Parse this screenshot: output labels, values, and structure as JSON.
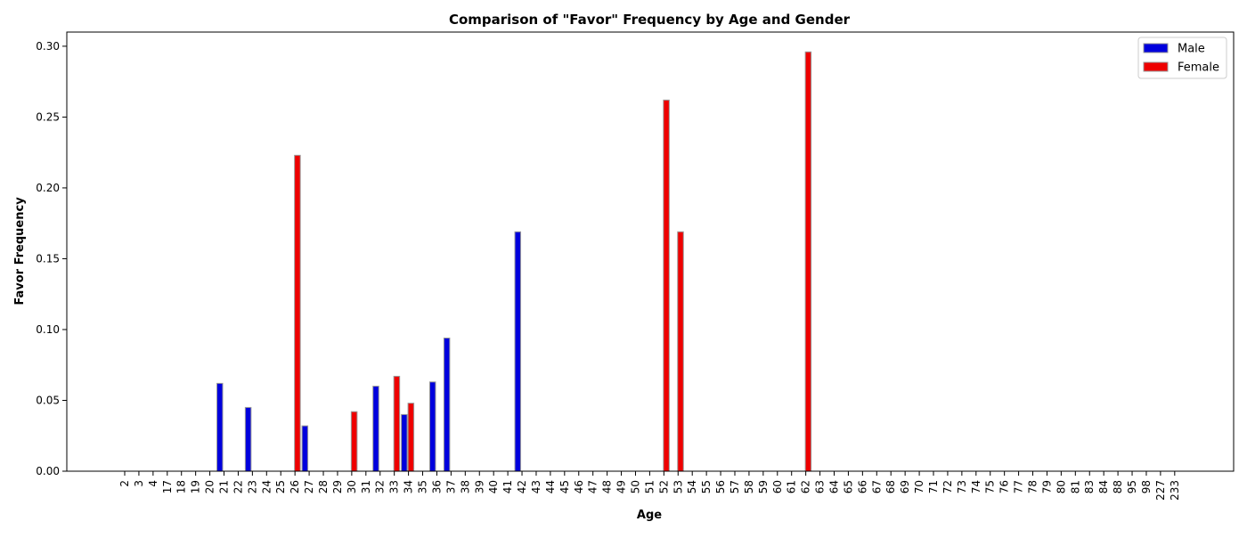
{
  "chart_data": {
    "type": "bar",
    "title": "Comparison of \"Favor\" Frequency by Age and Gender",
    "xlabel": "Age",
    "ylabel": "Favor Frequency",
    "ylim": [
      0,
      0.31
    ],
    "yticks": [
      "0.00",
      "0.05",
      "0.10",
      "0.15",
      "0.20",
      "0.25",
      "0.30"
    ],
    "legend_position": "top-right",
    "grid": false,
    "categories": [
      "2",
      "3",
      "4",
      "17",
      "18",
      "19",
      "20",
      "21",
      "22",
      "23",
      "24",
      "25",
      "26",
      "27",
      "28",
      "29",
      "30",
      "31",
      "32",
      "33",
      "34",
      "35",
      "36",
      "37",
      "38",
      "39",
      "40",
      "41",
      "42",
      "43",
      "44",
      "45",
      "46",
      "47",
      "48",
      "49",
      "50",
      "51",
      "52",
      "53",
      "54",
      "55",
      "56",
      "57",
      "58",
      "59",
      "60",
      "61",
      "62",
      "63",
      "64",
      "65",
      "66",
      "67",
      "68",
      "69",
      "70",
      "71",
      "72",
      "73",
      "74",
      "75",
      "76",
      "77",
      "78",
      "79",
      "80",
      "81",
      "83",
      "84",
      "88",
      "95",
      "98",
      "227",
      "233"
    ],
    "series": [
      {
        "name": "Male",
        "color": "#0000dd",
        "values": [
          0,
          0,
          0,
          0,
          0,
          0,
          0,
          0.062,
          0,
          0.045,
          0,
          0,
          0,
          0.032,
          0,
          0,
          0,
          0,
          0.06,
          0,
          0.04,
          0,
          0.063,
          0.094,
          0,
          0,
          0,
          0,
          0.169,
          0,
          0,
          0,
          0,
          0,
          0,
          0,
          0,
          0,
          0,
          0,
          0,
          0,
          0,
          0,
          0,
          0,
          0,
          0,
          0,
          0,
          0,
          0,
          0,
          0,
          0,
          0,
          0,
          0,
          0,
          0,
          0,
          0,
          0,
          0,
          0,
          0,
          0,
          0,
          0,
          0,
          0,
          0,
          0,
          0,
          0
        ]
      },
      {
        "name": "Female",
        "color": "#ee0000",
        "values": [
          0,
          0,
          0,
          0,
          0,
          0,
          0,
          0,
          0,
          0,
          0,
          0,
          0.223,
          0,
          0,
          0,
          0.042,
          0,
          0,
          0.067,
          0.048,
          0,
          0,
          0,
          0,
          0,
          0,
          0,
          0,
          0,
          0,
          0,
          0,
          0,
          0,
          0,
          0,
          0,
          0.262,
          0.169,
          0,
          0,
          0,
          0,
          0,
          0,
          0,
          0,
          0.296,
          0,
          0,
          0,
          0,
          0,
          0,
          0,
          0,
          0,
          0,
          0,
          0,
          0,
          0,
          0,
          0,
          0,
          0,
          0,
          0,
          0,
          0,
          0,
          0,
          0,
          0
        ]
      }
    ]
  }
}
